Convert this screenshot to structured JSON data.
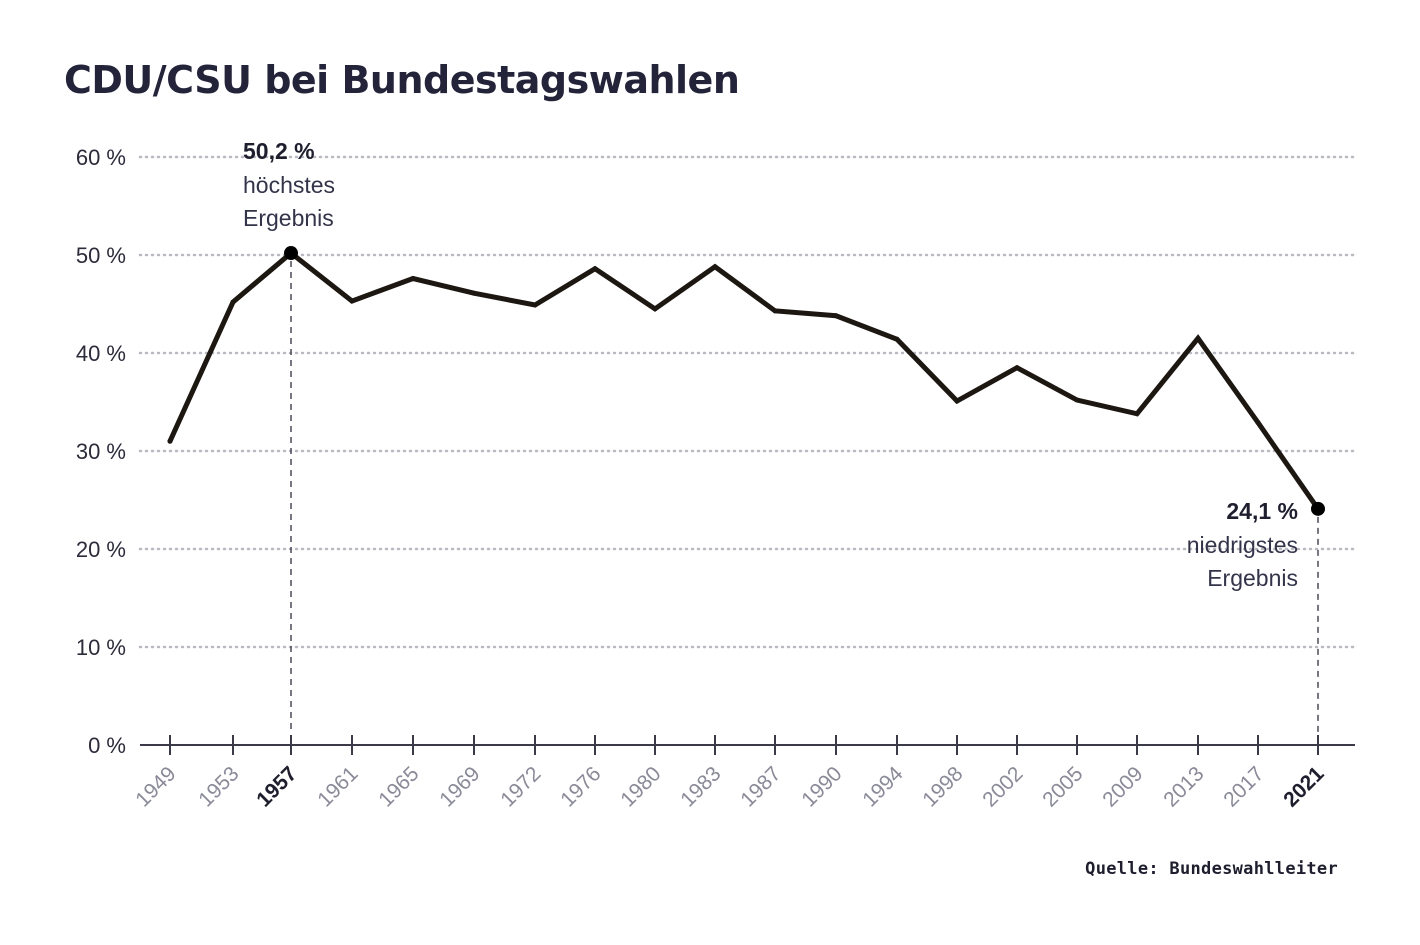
{
  "chart_data": {
    "type": "line",
    "title": "CDU/CSU bei Bundestagswahlen",
    "xlabel": "",
    "ylabel": "",
    "ylim": [
      0,
      60
    ],
    "y_ticks": [
      "0 %",
      "10 %",
      "20 %",
      "30 %",
      "40 %",
      "50 %",
      "60 %"
    ],
    "y_tick_values": [
      0,
      10,
      20,
      30,
      40,
      50,
      60
    ],
    "grid": true,
    "categories": [
      "1949",
      "1953",
      "1957",
      "1961",
      "1965",
      "1969",
      "1972",
      "1976",
      "1980",
      "1983",
      "1987",
      "1990",
      "1994",
      "1998",
      "2002",
      "2005",
      "2009",
      "2013",
      "2017",
      "2021"
    ],
    "highlighted_categories": [
      "1957",
      "2021"
    ],
    "series": [
      {
        "name": "CDU/CSU",
        "color": "#1d1712",
        "values": [
          31.0,
          45.2,
          50.2,
          45.3,
          47.6,
          46.1,
          44.9,
          48.6,
          44.5,
          48.8,
          44.3,
          43.8,
          41.4,
          35.1,
          38.5,
          35.2,
          33.8,
          41.5,
          32.9,
          24.1
        ]
      }
    ],
    "annotations": [
      {
        "category": "1957",
        "value_label": "50,2 %",
        "line1": "höchstes",
        "line2": "Ergebnis"
      },
      {
        "category": "2021",
        "value_label": "24,1 %",
        "line1": "niedrigstes",
        "line2": "Ergebnis"
      }
    ],
    "source": "Quelle: Bundeswahlleiter"
  }
}
